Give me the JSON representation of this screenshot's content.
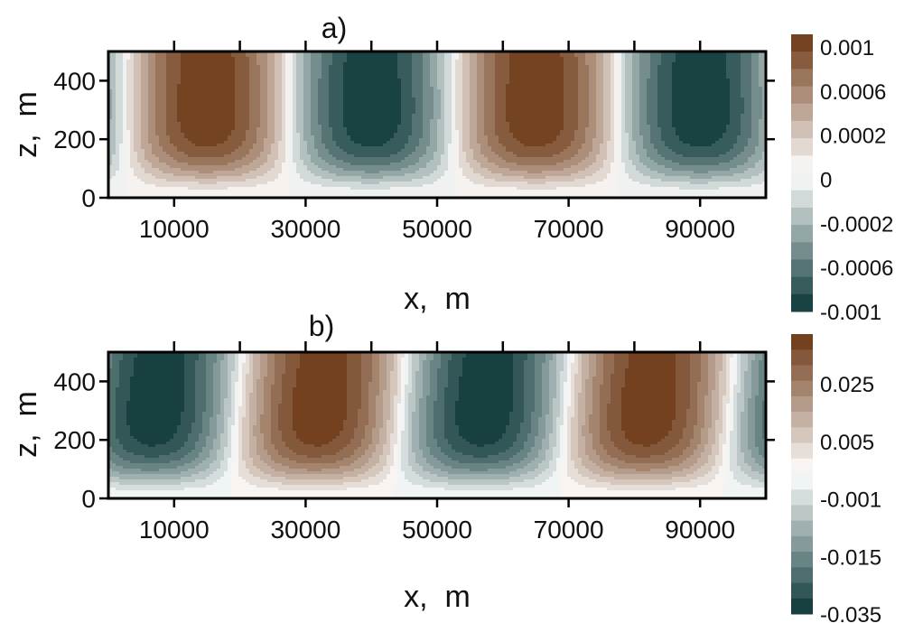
{
  "colors": {
    "positive_max": "#6b3612",
    "neutral": "#ffffff",
    "negative_max": "#0a3535"
  },
  "chart_data": [
    {
      "type": "heatmap",
      "subtype": "filled-contour",
      "panel_label": "a)",
      "xlabel": "x,  m",
      "ylabel": "z,  m",
      "xlim": [
        0,
        100000
      ],
      "ylim": [
        0,
        500
      ],
      "x_ticks": [
        10000,
        30000,
        50000,
        70000,
        90000
      ],
      "x_tick_labels": [
        "10000",
        "30000",
        "50000",
        "70000",
        "90000"
      ],
      "y_ticks": [
        0,
        200,
        400
      ],
      "y_tick_labels": [
        "0",
        "200",
        "400"
      ],
      "field": {
        "wavelength_x": 50000,
        "max_x": [
          15000,
          65000
        ],
        "min_x": [
          40000,
          90000
        ],
        "core_z_range": [
          150,
          500
        ],
        "amplitude": 0.001
      },
      "colorbar": {
        "range": [
          -0.001,
          0.001
        ],
        "levels": 16,
        "tick_values": [
          0.001,
          0.0006,
          0.0002,
          0,
          -0.0002,
          -0.0006,
          -0.001
        ],
        "tick_labels": [
          "0.001",
          "0.0006",
          "0.0002",
          "0",
          "-0.0002",
          "-0.0006",
          "-0.001"
        ]
      }
    },
    {
      "type": "heatmap",
      "subtype": "filled-contour",
      "panel_label": "b)",
      "xlabel": "x,  m",
      "ylabel": "z,  m",
      "xlim": [
        0,
        100000
      ],
      "ylim": [
        0,
        500
      ],
      "x_ticks": [
        10000,
        30000,
        50000,
        70000,
        90000
      ],
      "x_tick_labels": [
        "10000",
        "30000",
        "50000",
        "70000",
        "90000"
      ],
      "y_ticks": [
        0,
        200,
        400
      ],
      "y_tick_labels": [
        "0",
        "200",
        "400"
      ],
      "field": {
        "wavelength_x": 50000,
        "max_x": [
          31000,
          81000
        ],
        "min_x": [
          6000,
          56000
        ],
        "core_z_range": [
          150,
          500
        ],
        "amplitude_pos": 0.035,
        "amplitude_neg": -0.035
      },
      "colorbar": {
        "range": [
          -0.035,
          0.035
        ],
        "levels": 18,
        "tick_values": [
          0.025,
          0.005,
          -0.001,
          -0.015,
          -0.035
        ],
        "tick_labels": [
          "0.025",
          "0.005",
          "-0.001",
          "-0.015",
          "-0.035"
        ]
      }
    }
  ]
}
